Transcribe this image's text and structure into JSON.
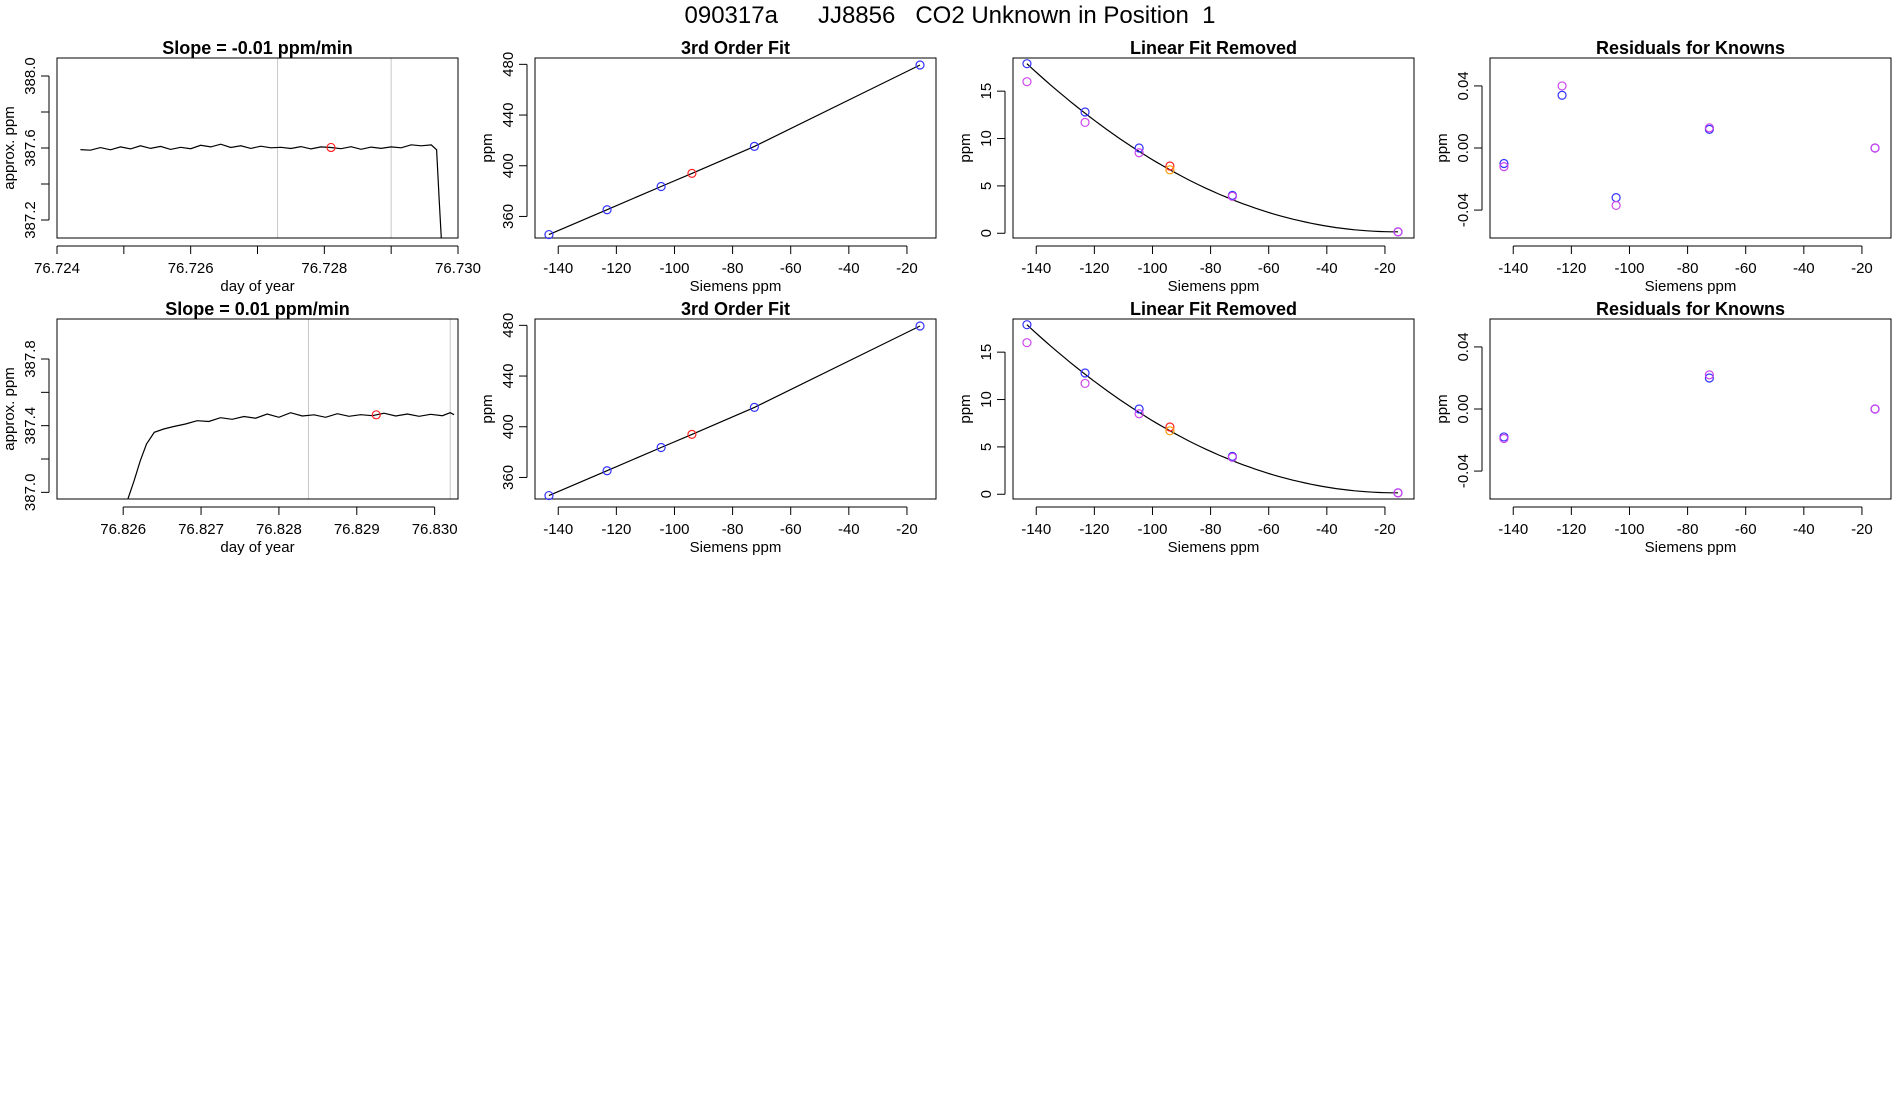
{
  "title": "090317a      JJ8856   CO2 Unknown in Position  1",
  "colors": {
    "known": "#3333ff",
    "unknown": "#ff2222",
    "residual_alt": "#cc44ee",
    "removed_unknown": "#ff9900",
    "line": "#000000",
    "vline": "#c8c8c8"
  },
  "chart_data": [
    {
      "id": "p1",
      "type": "line",
      "title": "Slope =  -0.01  ppm/min",
      "xlabel": "day of year",
      "ylabel": "approx. ppm",
      "xlim": [
        76.724,
        76.73
      ],
      "ylim": [
        387.1,
        388.1
      ],
      "xticks": [
        76.724,
        76.725,
        76.726,
        76.727,
        76.728,
        76.729,
        76.73
      ],
      "xticklabels": [
        "76.724",
        "",
        "76.726",
        "",
        "76.728",
        "",
        "76.730"
      ],
      "yticks": [
        387.2,
        387.4,
        387.6,
        387.8,
        388.0
      ],
      "yticklabels": [
        "387.2",
        "",
        "387.6",
        "",
        "388.0"
      ],
      "vlines": [
        76.7273,
        76.729
      ],
      "series": [
        {
          "values": [
            [
              76.72435,
              387.591
            ],
            [
              76.7245,
              387.588
            ],
            [
              76.72465,
              387.602
            ],
            [
              76.7248,
              387.59
            ],
            [
              76.72495,
              387.606
            ],
            [
              76.7251,
              387.595
            ],
            [
              76.72525,
              387.612
            ],
            [
              76.7254,
              387.598
            ],
            [
              76.72555,
              387.609
            ],
            [
              76.7257,
              387.592
            ],
            [
              76.72585,
              387.604
            ],
            [
              76.726,
              387.596
            ],
            [
              76.72615,
              387.615
            ],
            [
              76.7263,
              387.606
            ],
            [
              76.72645,
              387.621
            ],
            [
              76.7266,
              387.603
            ],
            [
              76.72675,
              387.612
            ],
            [
              76.7269,
              387.598
            ],
            [
              76.72705,
              387.61
            ],
            [
              76.7272,
              387.601
            ],
            [
              76.72735,
              387.604
            ],
            [
              76.7275,
              387.597
            ],
            [
              76.72765,
              387.608
            ],
            [
              76.7278,
              387.595
            ],
            [
              76.72795,
              387.606
            ],
            [
              76.7281,
              387.603
            ],
            [
              76.72825,
              387.596
            ],
            [
              76.7284,
              387.607
            ],
            [
              76.72855,
              387.593
            ],
            [
              76.7287,
              387.605
            ],
            [
              76.72885,
              387.598
            ],
            [
              76.729,
              387.606
            ],
            [
              76.72915,
              387.601
            ],
            [
              76.7293,
              387.618
            ],
            [
              76.72945,
              387.612
            ],
            [
              76.7296,
              387.617
            ],
            [
              76.72968,
              387.59
            ],
            [
              76.72972,
              387.3
            ],
            [
              76.72975,
              387.1
            ]
          ]
        }
      ],
      "points": [
        {
          "x": 76.7281,
          "y": 387.603,
          "color": "unknown"
        }
      ]
    },
    {
      "id": "p2",
      "type": "scatter",
      "title": "3rd Order Fit",
      "xlabel": "Siemens ppm",
      "ylabel": "ppm",
      "xlim": [
        -148,
        -10
      ],
      "ylim": [
        343,
        485
      ],
      "xticks": [
        -140,
        -120,
        -100,
        -80,
        -60,
        -40,
        -20
      ],
      "xticklabels": [
        "-140",
        "-120",
        "-100",
        "-80",
        "-60",
        "-40",
        "-20"
      ],
      "yticks": [
        360,
        400,
        440,
        480
      ],
      "yticklabels": [
        "360",
        "400",
        "440",
        "480"
      ],
      "fit_line": [
        [
          -143.2,
          345.7
        ],
        [
          -123.2,
          365.3
        ],
        [
          -104.6,
          383.6
        ],
        [
          -94.0,
          394.0
        ],
        [
          -72.5,
          415.3
        ],
        [
          -15.5,
          479.5
        ]
      ],
      "points": [
        {
          "x": -143.2,
          "y": 345.7,
          "color": "known"
        },
        {
          "x": -123.2,
          "y": 365.3,
          "color": "known"
        },
        {
          "x": -104.6,
          "y": 383.6,
          "color": "known"
        },
        {
          "x": -94.0,
          "y": 394.0,
          "color": "unknown"
        },
        {
          "x": -72.5,
          "y": 415.3,
          "color": "known"
        },
        {
          "x": -15.5,
          "y": 479.5,
          "color": "known"
        }
      ]
    },
    {
      "id": "p3",
      "type": "scatter",
      "title": "Linear Fit Removed",
      "xlabel": "Siemens ppm",
      "ylabel": "ppm",
      "xlim": [
        -148,
        -10
      ],
      "ylim": [
        -0.5,
        18.5
      ],
      "xticks": [
        -140,
        -120,
        -100,
        -80,
        -60,
        -40,
        -20
      ],
      "xticklabels": [
        "-140",
        "-120",
        "-100",
        "-80",
        "-60",
        "-40",
        "-20"
      ],
      "yticks": [
        0,
        5,
        10,
        15
      ],
      "yticklabels": [
        "0",
        "5",
        "10",
        "15"
      ],
      "fit_curve": {
        "x0": -15.5,
        "y0": 0.15,
        "x1": -143.2,
        "y1": 17.9,
        "power": 2.05
      },
      "points": [
        {
          "x": -143.2,
          "y": 17.9,
          "color": "known"
        },
        {
          "x": -143.2,
          "y": 16.0,
          "color": "residual_alt"
        },
        {
          "x": -123.2,
          "y": 12.8,
          "color": "known"
        },
        {
          "x": -123.2,
          "y": 11.7,
          "color": "residual_alt"
        },
        {
          "x": -104.6,
          "y": 9.0,
          "color": "known"
        },
        {
          "x": -104.6,
          "y": 8.5,
          "color": "residual_alt"
        },
        {
          "x": -94.0,
          "y": 7.1,
          "color": "unknown"
        },
        {
          "x": -94.0,
          "y": 6.7,
          "color": "removed_unknown"
        },
        {
          "x": -72.5,
          "y": 4.0,
          "color": "known"
        },
        {
          "x": -72.5,
          "y": 3.9,
          "color": "residual_alt"
        },
        {
          "x": -15.5,
          "y": 0.15,
          "color": "known"
        },
        {
          "x": -15.5,
          "y": 0.15,
          "color": "residual_alt"
        }
      ]
    },
    {
      "id": "p4",
      "type": "scatter",
      "title": "Residuals for Knowns",
      "xlabel": "Siemens ppm",
      "ylabel": "ppm",
      "xlim": [
        -148,
        -10
      ],
      "ylim": [
        -0.058,
        0.058
      ],
      "xticks": [
        -140,
        -120,
        -100,
        -80,
        -60,
        -40,
        -20
      ],
      "xticklabels": [
        "-140",
        "-120",
        "-100",
        "-80",
        "-60",
        "-40",
        "-20"
      ],
      "yticks": [
        -0.04,
        0.0,
        0.04
      ],
      "yticklabels": [
        "-0.04",
        "0.00",
        "0.04"
      ],
      "points": [
        {
          "x": -143.2,
          "y": -0.01,
          "color": "known"
        },
        {
          "x": -143.2,
          "y": -0.012,
          "color": "residual_alt"
        },
        {
          "x": -123.2,
          "y": 0.034,
          "color": "known"
        },
        {
          "x": -123.2,
          "y": 0.04,
          "color": "residual_alt"
        },
        {
          "x": -104.6,
          "y": -0.032,
          "color": "known"
        },
        {
          "x": -104.6,
          "y": -0.037,
          "color": "residual_alt"
        },
        {
          "x": -72.5,
          "y": 0.012,
          "color": "known"
        },
        {
          "x": -72.5,
          "y": 0.013,
          "color": "residual_alt"
        },
        {
          "x": -15.5,
          "y": 0.0,
          "color": "known"
        },
        {
          "x": -15.5,
          "y": 0.0,
          "color": "residual_alt"
        }
      ]
    },
    {
      "id": "p5",
      "type": "line",
      "title": "Slope =  0.01  ppm/min",
      "xlabel": "day of year",
      "ylabel": "approx. ppm",
      "xlim": [
        76.82515,
        76.8303
      ],
      "ylim": [
        386.96,
        388.04
      ],
      "xticks": [
        76.826,
        76.827,
        76.828,
        76.829,
        76.83
      ],
      "xticklabels": [
        "76.826",
        "76.827",
        "76.828",
        "76.829",
        "76.830"
      ],
      "yticks": [
        387.0,
        387.2,
        387.4,
        387.6,
        387.8
      ],
      "yticklabels": [
        "387.0",
        "",
        "387.4",
        "",
        "387.8"
      ],
      "vlines": [
        76.82838,
        76.8302
      ],
      "series": [
        {
          "values": [
            [
              76.82606,
              386.96
            ],
            [
              76.82614,
              387.07
            ],
            [
              76.82622,
              387.19
            ],
            [
              76.8263,
              387.29
            ],
            [
              76.8264,
              387.36
            ],
            [
              76.82652,
              387.38
            ],
            [
              76.82665,
              387.395
            ],
            [
              76.8268,
              387.41
            ],
            [
              76.82695,
              387.43
            ],
            [
              76.8271,
              387.425
            ],
            [
              76.82725,
              387.448
            ],
            [
              76.8274,
              387.438
            ],
            [
              76.82755,
              387.455
            ],
            [
              76.8277,
              387.445
            ],
            [
              76.82785,
              387.47
            ],
            [
              76.828,
              387.45
            ],
            [
              76.82815,
              387.478
            ],
            [
              76.8283,
              387.458
            ],
            [
              76.82845,
              387.465
            ],
            [
              76.8286,
              387.45
            ],
            [
              76.82875,
              387.472
            ],
            [
              76.8289,
              387.456
            ],
            [
              76.82905,
              387.466
            ],
            [
              76.8292,
              387.46
            ],
            [
              76.82935,
              387.475
            ],
            [
              76.8295,
              387.458
            ],
            [
              76.82965,
              387.47
            ],
            [
              76.8298,
              387.456
            ],
            [
              76.82995,
              387.468
            ],
            [
              76.8301,
              387.46
            ],
            [
              76.8302,
              387.478
            ],
            [
              76.83025,
              387.466
            ]
          ]
        }
      ],
      "points": [
        {
          "x": 76.82925,
          "y": 387.465,
          "color": "unknown"
        }
      ]
    },
    {
      "id": "p6",
      "type": "scatter",
      "title": "3rd Order Fit",
      "xlabel": "Siemens ppm",
      "ylabel": "ppm",
      "xlim": [
        -148,
        -10
      ],
      "ylim": [
        343,
        485
      ],
      "xticks": [
        -140,
        -120,
        -100,
        -80,
        -60,
        -40,
        -20
      ],
      "xticklabels": [
        "-140",
        "-120",
        "-100",
        "-80",
        "-60",
        "-40",
        "-20"
      ],
      "yticks": [
        360,
        400,
        440,
        480
      ],
      "yticklabels": [
        "360",
        "400",
        "440",
        "480"
      ],
      "fit_line": [
        [
          -143.2,
          345.7
        ],
        [
          -123.2,
          365.3
        ],
        [
          -104.6,
          383.6
        ],
        [
          -94.0,
          394.0
        ],
        [
          -72.5,
          415.3
        ],
        [
          -15.5,
          479.5
        ]
      ],
      "points": [
        {
          "x": -143.2,
          "y": 345.7,
          "color": "known"
        },
        {
          "x": -123.2,
          "y": 365.3,
          "color": "known"
        },
        {
          "x": -104.6,
          "y": 383.6,
          "color": "known"
        },
        {
          "x": -94.0,
          "y": 394.0,
          "color": "unknown"
        },
        {
          "x": -72.5,
          "y": 415.3,
          "color": "known"
        },
        {
          "x": -15.5,
          "y": 479.5,
          "color": "known"
        }
      ]
    },
    {
      "id": "p7",
      "type": "scatter",
      "title": "Linear Fit Removed",
      "xlabel": "Siemens ppm",
      "ylabel": "ppm",
      "xlim": [
        -148,
        -10
      ],
      "ylim": [
        -0.5,
        18.5
      ],
      "xticks": [
        -140,
        -120,
        -100,
        -80,
        -60,
        -40,
        -20
      ],
      "xticklabels": [
        "-140",
        "-120",
        "-100",
        "-80",
        "-60",
        "-40",
        "-20"
      ],
      "yticks": [
        0,
        5,
        10,
        15
      ],
      "yticklabels": [
        "0",
        "5",
        "10",
        "15"
      ],
      "fit_curve": {
        "x0": -15.5,
        "y0": 0.15,
        "x1": -143.2,
        "y1": 17.9,
        "power": 2.05
      },
      "points": [
        {
          "x": -143.2,
          "y": 17.9,
          "color": "known"
        },
        {
          "x": -143.2,
          "y": 16.0,
          "color": "residual_alt"
        },
        {
          "x": -123.2,
          "y": 12.8,
          "color": "known"
        },
        {
          "x": -123.2,
          "y": 11.7,
          "color": "residual_alt"
        },
        {
          "x": -104.6,
          "y": 9.0,
          "color": "known"
        },
        {
          "x": -104.6,
          "y": 8.5,
          "color": "residual_alt"
        },
        {
          "x": -94.0,
          "y": 7.1,
          "color": "unknown"
        },
        {
          "x": -94.0,
          "y": 6.7,
          "color": "removed_unknown"
        },
        {
          "x": -72.5,
          "y": 4.0,
          "color": "known"
        },
        {
          "x": -72.5,
          "y": 3.9,
          "color": "residual_alt"
        },
        {
          "x": -15.5,
          "y": 0.15,
          "color": "known"
        },
        {
          "x": -15.5,
          "y": 0.15,
          "color": "residual_alt"
        }
      ]
    },
    {
      "id": "p8",
      "type": "scatter",
      "title": "Residuals for Knowns",
      "xlabel": "Siemens ppm",
      "ylabel": "ppm",
      "xlim": [
        -148,
        -10
      ],
      "ylim": [
        -0.058,
        0.058
      ],
      "xticks": [
        -140,
        -120,
        -100,
        -80,
        -60,
        -40,
        -20
      ],
      "xticklabels": [
        "-140",
        "-120",
        "-100",
        "-80",
        "-60",
        "-40",
        "-20"
      ],
      "yticks": [
        -0.04,
        0.0,
        0.04
      ],
      "yticklabels": [
        "-0.04",
        "0.00",
        "0.04"
      ],
      "points": [
        {
          "x": -143.2,
          "y": -0.018,
          "color": "known"
        },
        {
          "x": -143.2,
          "y": -0.019,
          "color": "residual_alt"
        },
        {
          "x": -72.5,
          "y": 0.02,
          "color": "known"
        },
        {
          "x": -72.5,
          "y": 0.022,
          "color": "residual_alt"
        },
        {
          "x": -15.5,
          "y": 0.0,
          "color": "known"
        },
        {
          "x": -15.5,
          "y": 0.0,
          "color": "residual_alt"
        }
      ]
    }
  ]
}
